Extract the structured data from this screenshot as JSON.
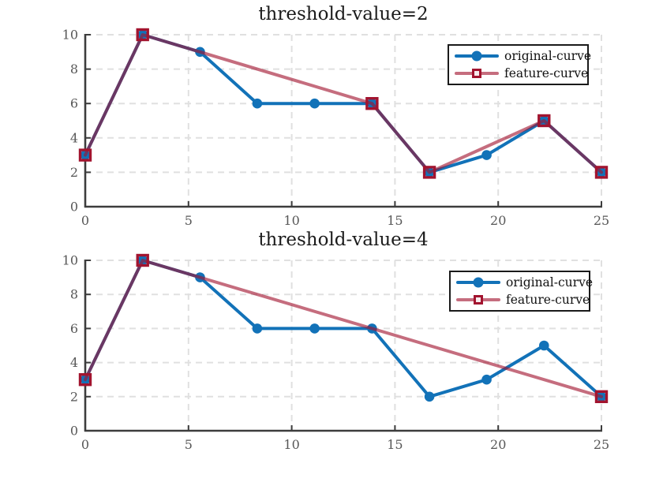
{
  "figure": {
    "background": "#ffffff",
    "axis_color": "#3d3d3d",
    "grid_color": "#e0e0e0",
    "tick_label_color": "#575757"
  },
  "chart_data": [
    {
      "type": "line",
      "title": "threshold-value=2",
      "xlabel": "",
      "ylabel": "",
      "xlim": [
        0,
        25
      ],
      "ylim": [
        0,
        10
      ],
      "xticks": [
        0,
        5,
        10,
        15,
        20,
        25
      ],
      "yticks": [
        0,
        2,
        4,
        6,
        8,
        10
      ],
      "grid": true,
      "legend_position": "top-right",
      "series": [
        {
          "name": "original-curve",
          "color": "#1272b8",
          "marker": "circle",
          "line_opacity": 1,
          "x": [
            0,
            2.78,
            5.56,
            8.33,
            11.11,
            13.89,
            16.67,
            19.44,
            22.22,
            25
          ],
          "y": [
            3,
            10,
            9,
            6,
            6,
            6,
            2,
            3,
            5,
            2
          ]
        },
        {
          "name": "feature-curve",
          "color": "#a2142f",
          "marker": "square",
          "line_opacity": 0.62,
          "x": [
            0,
            2.78,
            13.89,
            16.67,
            22.22,
            25
          ],
          "y": [
            3,
            10,
            6,
            2,
            5,
            2
          ]
        }
      ]
    },
    {
      "type": "line",
      "title": "threshold-value=4",
      "xlabel": "",
      "ylabel": "",
      "xlim": [
        0,
        25
      ],
      "ylim": [
        0,
        10
      ],
      "xticks": [
        0,
        5,
        10,
        15,
        20,
        25
      ],
      "yticks": [
        0,
        2,
        4,
        6,
        8,
        10
      ],
      "grid": true,
      "legend_position": "top-right",
      "series": [
        {
          "name": "original-curve",
          "color": "#1272b8",
          "marker": "circle",
          "line_opacity": 1,
          "x": [
            0,
            2.78,
            5.56,
            8.33,
            11.11,
            13.89,
            16.67,
            19.44,
            22.22,
            25
          ],
          "y": [
            3,
            10,
            9,
            6,
            6,
            6,
            2,
            3,
            5,
            2
          ]
        },
        {
          "name": "feature-curve",
          "color": "#a2142f",
          "marker": "square",
          "line_opacity": 0.62,
          "x": [
            0,
            2.78,
            25
          ],
          "y": [
            3,
            10,
            2
          ]
        }
      ]
    }
  ]
}
